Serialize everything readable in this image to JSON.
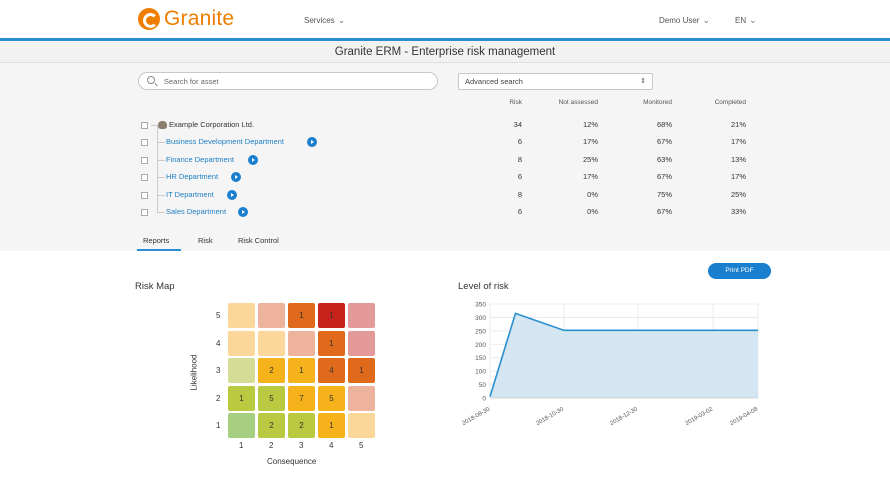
{
  "header": {
    "brand": "Granite",
    "services_label": "Services",
    "user_label": "Demo User",
    "language_label": "EN"
  },
  "page_title": "Granite ERM - Enterprise risk management",
  "search": {
    "placeholder": "Search for asset"
  },
  "advanced_search": {
    "selected": "Advanced search"
  },
  "table": {
    "columns": [
      "Risk",
      "Not assessed",
      "Monitored",
      "Completed"
    ],
    "rows": [
      {
        "name": "Example Corporation Ltd.",
        "risk": "34",
        "not_assessed": "12%",
        "monitored": "68%",
        "completed": "21%"
      },
      {
        "name": "Business Development Department",
        "risk": "6",
        "not_assessed": "17%",
        "monitored": "67%",
        "completed": "17%"
      },
      {
        "name": "Finance Department",
        "risk": "8",
        "not_assessed": "25%",
        "monitored": "63%",
        "completed": "13%"
      },
      {
        "name": "HR Department",
        "risk": "6",
        "not_assessed": "17%",
        "monitored": "67%",
        "completed": "17%"
      },
      {
        "name": "IT Department",
        "risk": "8",
        "not_assessed": "0%",
        "monitored": "75%",
        "completed": "25%"
      },
      {
        "name": "Sales Department",
        "risk": "6",
        "not_assessed": "0%",
        "monitored": "67%",
        "completed": "33%"
      }
    ]
  },
  "tabs": [
    "Reports",
    "Risk",
    "Risk Control"
  ],
  "print_button": "Print PDF",
  "risk_map": {
    "title": "Risk Map",
    "xlabel": "Consequence",
    "ylabel": "Likelihood",
    "x_ticks": [
      "1",
      "2",
      "3",
      "4",
      "5"
    ],
    "y_ticks": [
      "5",
      "4",
      "3",
      "2",
      "1"
    ],
    "rows": [
      {
        "colors": [
          "#fbd89a",
          "#eeb39c",
          "#e06a1c",
          "#c8221c",
          "#e59a9a"
        ],
        "values": [
          "",
          "",
          "1",
          "1",
          ""
        ]
      },
      {
        "colors": [
          "#fbd89a",
          "#fbd89a",
          "#eeb39c",
          "#e06a1c",
          "#e59a9a"
        ],
        "values": [
          "",
          "",
          "",
          "1",
          ""
        ]
      },
      {
        "colors": [
          "#d5dc96",
          "#f5b21a",
          "#f5b21a",
          "#e06a1c",
          "#e06a1c"
        ],
        "values": [
          "",
          "2",
          "1",
          "4",
          "1"
        ]
      },
      {
        "colors": [
          "#b9c940",
          "#b9c940",
          "#f5b21a",
          "#f5b21a",
          "#eeb39c"
        ],
        "values": [
          "1",
          "5",
          "7",
          "5",
          ""
        ]
      },
      {
        "colors": [
          "#a6cf82",
          "#b9c940",
          "#b9c940",
          "#f5b21a",
          "#fbd89a"
        ],
        "values": [
          "",
          "2",
          "2",
          "1",
          ""
        ]
      }
    ]
  },
  "chart_data": {
    "type": "area",
    "title": "Level of risk",
    "xlabel": "",
    "ylabel": "",
    "x": [
      "2018-08-30",
      "2018-09-20",
      "2018-10-30",
      "2019-04-08"
    ],
    "values": [
      5,
      315,
      252,
      252
    ],
    "x_ticks": [
      "2018-08-30",
      "2018-10-30",
      "2018-12-30",
      "2019-03-02",
      "2019-04-08"
    ],
    "y_ticks": [
      0,
      50,
      100,
      150,
      200,
      250,
      300,
      350
    ],
    "ylim": [
      0,
      350
    ],
    "grid": true,
    "line_color": "#2a8fd0",
    "fill_color": "#d4e6f1"
  }
}
